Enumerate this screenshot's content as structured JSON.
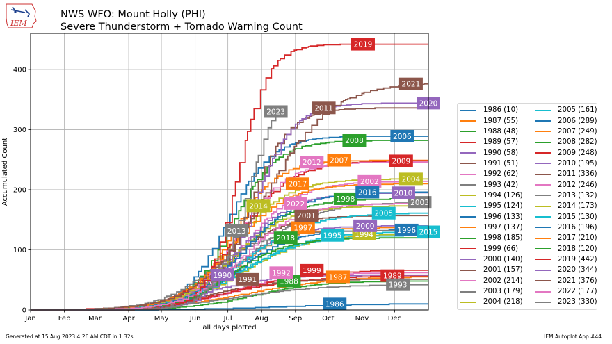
{
  "header": {
    "title_line1": "NWS WFO: Mount Holly (PHI)",
    "title_line2": "Severe Thunderstorm + Tornado Warning Count",
    "logo_text": "IEM"
  },
  "footer": {
    "generated": "Generated at 15 Aug 2023 4:26 AM CDT in 1.32s",
    "app": "IEM Autoplot App #44"
  },
  "chart_data": {
    "type": "line",
    "title": "NWS WFO: Mount Holly (PHI) Severe Thunderstorm + Tornado Warning Count",
    "xlabel": "all days plotted",
    "ylabel": "Accumulated Count",
    "xlim_day_of_year": [
      1,
      366
    ],
    "ylim": [
      0,
      460
    ],
    "yticks": [
      0,
      100,
      200,
      300,
      400
    ],
    "xticks": [
      {
        "label": "Jan",
        "day": 1
      },
      {
        "label": "Feb",
        "day": 32
      },
      {
        "label": "Mar",
        "day": 60
      },
      {
        "label": "Apr",
        "day": 91
      },
      {
        "label": "May",
        "day": 121
      },
      {
        "label": "Jun",
        "day": 152
      },
      {
        "label": "Jul",
        "day": 182
      },
      {
        "label": "Aug",
        "day": 213
      },
      {
        "label": "Sep",
        "day": 244
      },
      {
        "label": "Oct",
        "day": 274
      },
      {
        "label": "Nov",
        "day": 305
      },
      {
        "label": "Dec",
        "day": 335
      }
    ],
    "grid": true,
    "legend_position": "right",
    "series": [
      {
        "year": "1986",
        "total": 10,
        "color": "#1f77b4",
        "mid": 230,
        "spread": 40,
        "end": 366,
        "label_day": 280,
        "label_value": 10
      },
      {
        "year": "1987",
        "total": 55,
        "color": "#ff7f0e",
        "mid": 200,
        "spread": 40,
        "end": 366,
        "label_day": 283,
        "label_value": 55
      },
      {
        "year": "1988",
        "total": 48,
        "color": "#2ca02c",
        "mid": 205,
        "spread": 30,
        "end": 366,
        "label_day": 238,
        "label_value": 48
      },
      {
        "year": "1989",
        "total": 57,
        "color": "#d62728",
        "mid": 180,
        "spread": 40,
        "end": 366,
        "label_day": 333,
        "label_value": 57
      },
      {
        "year": "1990",
        "total": 58,
        "color": "#9467bd",
        "mid": 160,
        "spread": 30,
        "end": 366,
        "label_day": 177,
        "label_value": 58
      },
      {
        "year": "1991",
        "total": 51,
        "color": "#8c564b",
        "mid": 165,
        "spread": 30,
        "end": 366,
        "label_day": 200,
        "label_value": 51
      },
      {
        "year": "1992",
        "total": 62,
        "color": "#e377c2",
        "mid": 185,
        "spread": 30,
        "end": 366,
        "label_day": 231,
        "label_value": 62
      },
      {
        "year": "1993",
        "total": 42,
        "color": "#7f7f7f",
        "mid": 190,
        "spread": 40,
        "end": 366,
        "label_day": 338,
        "label_value": 42
      },
      {
        "year": "1994",
        "total": 126,
        "color": "#bcbd22",
        "mid": 195,
        "spread": 30,
        "end": 366,
        "label_day": 307,
        "label_value": 126
      },
      {
        "year": "1995",
        "total": 124,
        "color": "#17becf",
        "mid": 190,
        "spread": 30,
        "end": 366,
        "label_day": 278,
        "label_value": 124
      },
      {
        "year": "1996",
        "total": 133,
        "color": "#1f77b4",
        "mid": 190,
        "spread": 25,
        "end": 366,
        "label_day": 346,
        "label_value": 133
      },
      {
        "year": "1997",
        "total": 137,
        "color": "#ff7f0e",
        "mid": 185,
        "spread": 25,
        "end": 366,
        "label_day": 251,
        "label_value": 137
      },
      {
        "year": "1998",
        "total": 185,
        "color": "#2ca02c",
        "mid": 190,
        "spread": 25,
        "end": 366,
        "label_day": 290,
        "label_value": 185
      },
      {
        "year": "1999",
        "total": 66,
        "color": "#d62728",
        "mid": 190,
        "spread": 35,
        "end": 366,
        "label_day": 259,
        "label_value": 66
      },
      {
        "year": "2000",
        "total": 140,
        "color": "#9467bd",
        "mid": 185,
        "spread": 25,
        "end": 366,
        "label_day": 308,
        "label_value": 140
      },
      {
        "year": "2001",
        "total": 157,
        "color": "#8c564b",
        "mid": 180,
        "spread": 25,
        "end": 366,
        "label_day": 254,
        "label_value": 157
      },
      {
        "year": "2002",
        "total": 214,
        "color": "#e377c2",
        "mid": 195,
        "spread": 25,
        "end": 366,
        "label_day": 312,
        "label_value": 214
      },
      {
        "year": "2003",
        "total": 179,
        "color": "#7f7f7f",
        "mid": 200,
        "spread": 30,
        "end": 366,
        "label_day": 358,
        "label_value": 179
      },
      {
        "year": "2004",
        "total": 218,
        "color": "#bcbd22",
        "mid": 185,
        "spread": 25,
        "end": 366,
        "label_day": 350,
        "label_value": 218
      },
      {
        "year": "2005",
        "total": 161,
        "color": "#17becf",
        "mid": 195,
        "spread": 30,
        "end": 366,
        "label_day": 325,
        "label_value": 161
      },
      {
        "year": "2006",
        "total": 289,
        "color": "#1f77b4",
        "mid": 180,
        "spread": 20,
        "end": 366,
        "label_day": 342,
        "label_value": 289
      },
      {
        "year": "2007",
        "total": 249,
        "color": "#ff7f0e",
        "mid": 185,
        "spread": 20,
        "end": 366,
        "label_day": 284,
        "label_value": 249
      },
      {
        "year": "2008",
        "total": 282,
        "color": "#2ca02c",
        "mid": 185,
        "spread": 20,
        "end": 366,
        "label_day": 298,
        "label_value": 282
      },
      {
        "year": "2009",
        "total": 248,
        "color": "#d62728",
        "mid": 190,
        "spread": 25,
        "end": 366,
        "label_day": 341,
        "label_value": 248
      },
      {
        "year": "2010",
        "total": 195,
        "color": "#9467bd",
        "mid": 190,
        "spread": 25,
        "end": 366,
        "label_day": 343,
        "label_value": 195
      },
      {
        "year": "2011",
        "total": 336,
        "color": "#8c564b",
        "mid": 200,
        "spread": 18,
        "end": 366,
        "label_day": 270,
        "label_value": 336
      },
      {
        "year": "2012",
        "total": 246,
        "color": "#e377c2",
        "mid": 190,
        "spread": 22,
        "end": 366,
        "label_day": 259,
        "label_value": 246
      },
      {
        "year": "2013",
        "total": 132,
        "color": "#7f7f7f",
        "mid": 165,
        "spread": 25,
        "end": 366,
        "label_day": 190,
        "label_value": 132
      },
      {
        "year": "2014",
        "total": 173,
        "color": "#bcbd22",
        "mid": 185,
        "spread": 25,
        "end": 366,
        "label_day": 210,
        "label_value": 173
      },
      {
        "year": "2015",
        "total": 130,
        "color": "#17becf",
        "mid": 195,
        "spread": 30,
        "end": 366,
        "label_day": 366,
        "label_value": 130
      },
      {
        "year": "2016",
        "total": 196,
        "color": "#1f77b4",
        "mid": 195,
        "spread": 25,
        "end": 366,
        "label_day": 310,
        "label_value": 196
      },
      {
        "year": "2017",
        "total": 210,
        "color": "#ff7f0e",
        "mid": 185,
        "spread": 25,
        "end": 366,
        "label_day": 246,
        "label_value": 210
      },
      {
        "year": "2018",
        "total": 120,
        "color": "#2ca02c",
        "mid": 185,
        "spread": 25,
        "end": 366,
        "label_day": 235,
        "label_value": 120
      },
      {
        "year": "2019",
        "total": 442,
        "color": "#d62728",
        "mid": 190,
        "spread": 14,
        "end": 366,
        "label_day": 306,
        "label_value": 442
      },
      {
        "year": "2020",
        "total": 344,
        "color": "#9467bd",
        "mid": 205,
        "spread": 18,
        "end": 366,
        "label_day": 366,
        "label_value": 344
      },
      {
        "year": "2021",
        "total": 376,
        "color": "#8c564b",
        "mid": 215,
        "spread": 30,
        "end": 366,
        "label_day": 350,
        "label_value": 376
      },
      {
        "year": "2022",
        "total": 177,
        "color": "#e377c2",
        "mid": 195,
        "spread": 25,
        "end": 366,
        "label_day": 244,
        "label_value": 177
      },
      {
        "year": "2023",
        "total": 330,
        "color": "#7f7f7f",
        "mid": 200,
        "spread": 16,
        "end": 226,
        "label_day": 226,
        "label_value": 330
      }
    ]
  }
}
